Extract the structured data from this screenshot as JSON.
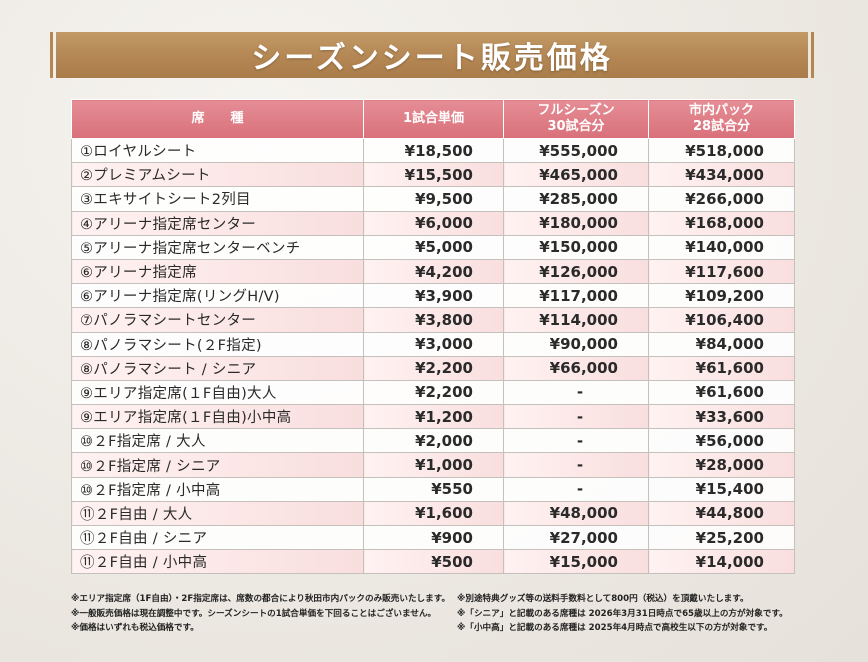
{
  "title": "シーズンシート販売価格",
  "headers": {
    "seat": "席　　種",
    "single": "1試合単価",
    "full_line1": "フルシーズン",
    "full_line2": "30試合分",
    "pack_line1": "市内パック",
    "pack_line2": "28試合分"
  },
  "rows": [
    {
      "name": "①ロイヤルシート",
      "single": "¥18,500",
      "full": "¥555,000",
      "pack": "¥518,000"
    },
    {
      "name": "②プレミアムシート",
      "single": "¥15,500",
      "full": "¥465,000",
      "pack": "¥434,000"
    },
    {
      "name": "③エキサイトシート2列目",
      "single": "¥9,500",
      "full": "¥285,000",
      "pack": "¥266,000"
    },
    {
      "name": "④アリーナ指定席センター",
      "single": "¥6,000",
      "full": "¥180,000",
      "pack": "¥168,000"
    },
    {
      "name": "⑤アリーナ指定席センターベンチ",
      "single": "¥5,000",
      "full": "¥150,000",
      "pack": "¥140,000"
    },
    {
      "name": "⑥アリーナ指定席",
      "single": "¥4,200",
      "full": "¥126,000",
      "pack": "¥117,600"
    },
    {
      "name": "⑥アリーナ指定席(リングH/V)",
      "single": "¥3,900",
      "full": "¥117,000",
      "pack": "¥109,200"
    },
    {
      "name": "⑦パノラマシートセンター",
      "single": "¥3,800",
      "full": "¥114,000",
      "pack": "¥106,400"
    },
    {
      "name": "⑧パノラマシート(２F指定)",
      "single": "¥3,000",
      "full": "¥90,000",
      "pack": "¥84,000"
    },
    {
      "name": "⑧パノラマシート / シニア",
      "single": "¥2,200",
      "full": "¥66,000",
      "pack": "¥61,600"
    },
    {
      "name": "⑨エリア指定席(１F自由)大人",
      "single": "¥2,200",
      "full": "-",
      "pack": "¥61,600"
    },
    {
      "name": "⑨エリア指定席(１F自由)小中高",
      "single": "¥1,200",
      "full": "-",
      "pack": "¥33,600"
    },
    {
      "name": "⑩２F指定席 / 大人",
      "single": "¥2,000",
      "full": "-",
      "pack": "¥56,000"
    },
    {
      "name": "⑩２F指定席 / シニア",
      "single": "¥1,000",
      "full": "-",
      "pack": "¥28,000"
    },
    {
      "name": "⑩２F指定席 / 小中高",
      "single": "¥550",
      "full": "-",
      "pack": "¥15,400"
    },
    {
      "name": "⑪２F自由 / 大人",
      "single": "¥1,600",
      "full": "¥48,000",
      "pack": "¥44,800"
    },
    {
      "name": "⑪２F自由 / シニア",
      "single": "¥900",
      "full": "¥27,000",
      "pack": "¥25,200"
    },
    {
      "name": "⑪２F自由 / 小中高",
      "single": "¥500",
      "full": "¥15,000",
      "pack": "¥14,000"
    }
  ],
  "notes_left": [
    "※エリア指定席（1F自由）・2F指定席は、席数の都合により秋田市内パックのみ販売いたします。",
    "※一般販売価格は現在調整中です。シーズンシートの1試合単価を下回ることはございません。",
    "※価格はいずれも税込価格です。"
  ],
  "notes_right": [
    "※別途特典グッズ等の送料手数料として800円（税込）を頂戴いたします。",
    "※「シニア」と記載のある席種は 2026年3月31日時点で65歳以上の方が対象です。",
    "※「小中高」と記載のある席種は 2025年4月時点で高校生以下の方が対象です。"
  ],
  "colors": {
    "banner": "#b58855",
    "header": "#d9707a",
    "row_tint": "#f9dede"
  }
}
